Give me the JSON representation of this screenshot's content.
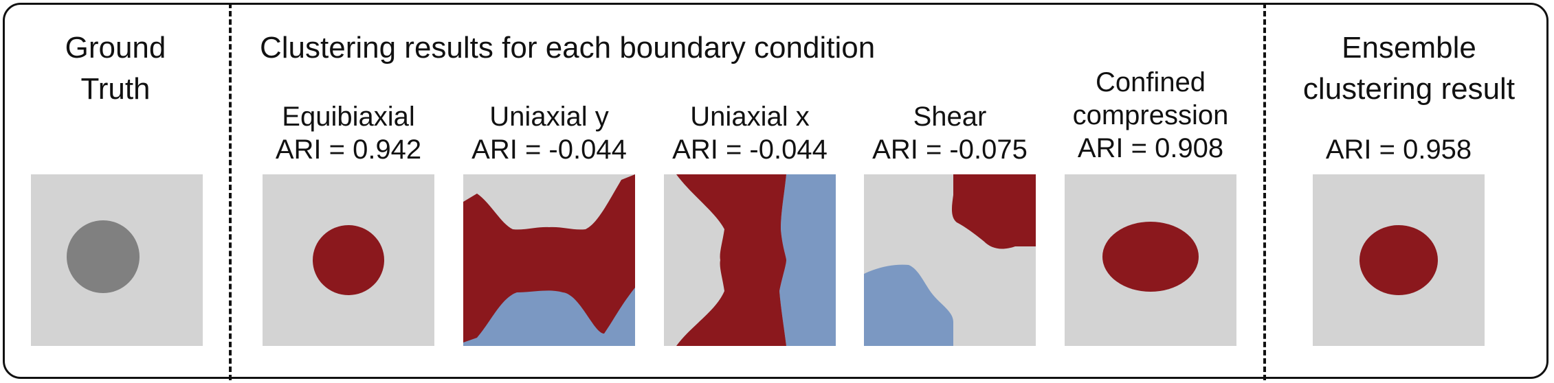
{
  "ground_truth": {
    "title_line1": "Ground",
    "title_line2": "Truth"
  },
  "clustering": {
    "title": "Clustering results for each boundary condition",
    "panels": [
      {
        "name": "Equibiaxial",
        "name_line1": "",
        "ari": "ARI = 0.942"
      },
      {
        "name": "Uniaxial y",
        "name_line1": "",
        "ari": "ARI = -0.044"
      },
      {
        "name": "Uniaxial x",
        "name_line1": "",
        "ari": "ARI = -0.044"
      },
      {
        "name": "Shear",
        "name_line1": "",
        "ari": "ARI = -0.075"
      },
      {
        "name": "compression",
        "name_line1": "Confined",
        "ari": "ARI = 0.908"
      }
    ]
  },
  "ensemble": {
    "title_line1": "Ensemble",
    "title_line2": "clustering result",
    "ari": "ARI = 0.958"
  },
  "colors": {
    "background": "#d3d3d3",
    "inclusion_gray": "#808080",
    "cluster_red": "#8b181d",
    "cluster_blue": "#7b98c2"
  }
}
